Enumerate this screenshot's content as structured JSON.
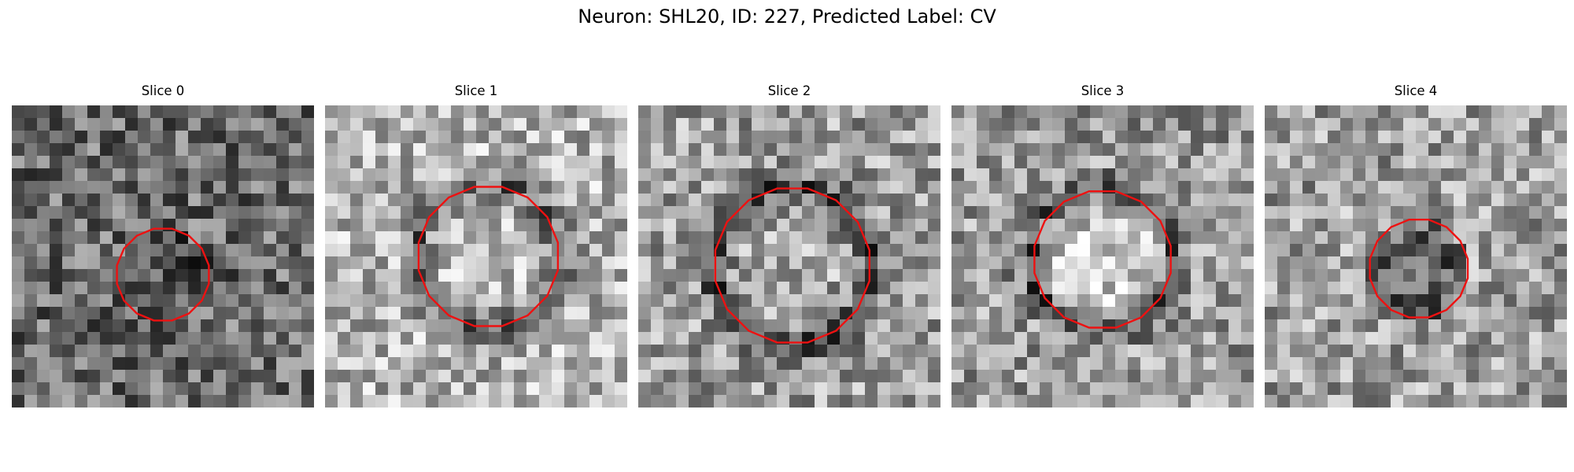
{
  "figure": {
    "title": "Neuron: SHL20, ID: 227, Predicted Label: CV"
  },
  "slices": [
    {
      "title": "Slice 0",
      "seed": 11,
      "base": 0.42,
      "ring_strength": 0.0,
      "center_delta": -0.12,
      "contour_radius": 0.31,
      "contour_center": [
        0.5,
        0.56
      ]
    },
    {
      "title": "Slice 1",
      "seed": 23,
      "base": 0.7,
      "ring_strength": 0.32,
      "center_delta": 0.05,
      "contour_radius": 0.47,
      "contour_center": [
        0.54,
        0.5
      ]
    },
    {
      "title": "Slice 2",
      "seed": 37,
      "base": 0.62,
      "ring_strength": 0.36,
      "center_delta": 0.02,
      "contour_radius": 0.52,
      "contour_center": [
        0.51,
        0.53
      ]
    },
    {
      "title": "Slice 3",
      "seed": 49,
      "base": 0.6,
      "ring_strength": 0.3,
      "center_delta": 0.18,
      "contour_radius": 0.46,
      "contour_center": [
        0.5,
        0.51
      ]
    },
    {
      "title": "Slice 4",
      "seed": 61,
      "base": 0.62,
      "ring_strength": 0.0,
      "center_delta": -0.24,
      "contour_radius": 0.33,
      "contour_center": [
        0.51,
        0.54
      ]
    }
  ],
  "colors": {
    "contour": "#ee1111",
    "background": "#ffffff"
  }
}
